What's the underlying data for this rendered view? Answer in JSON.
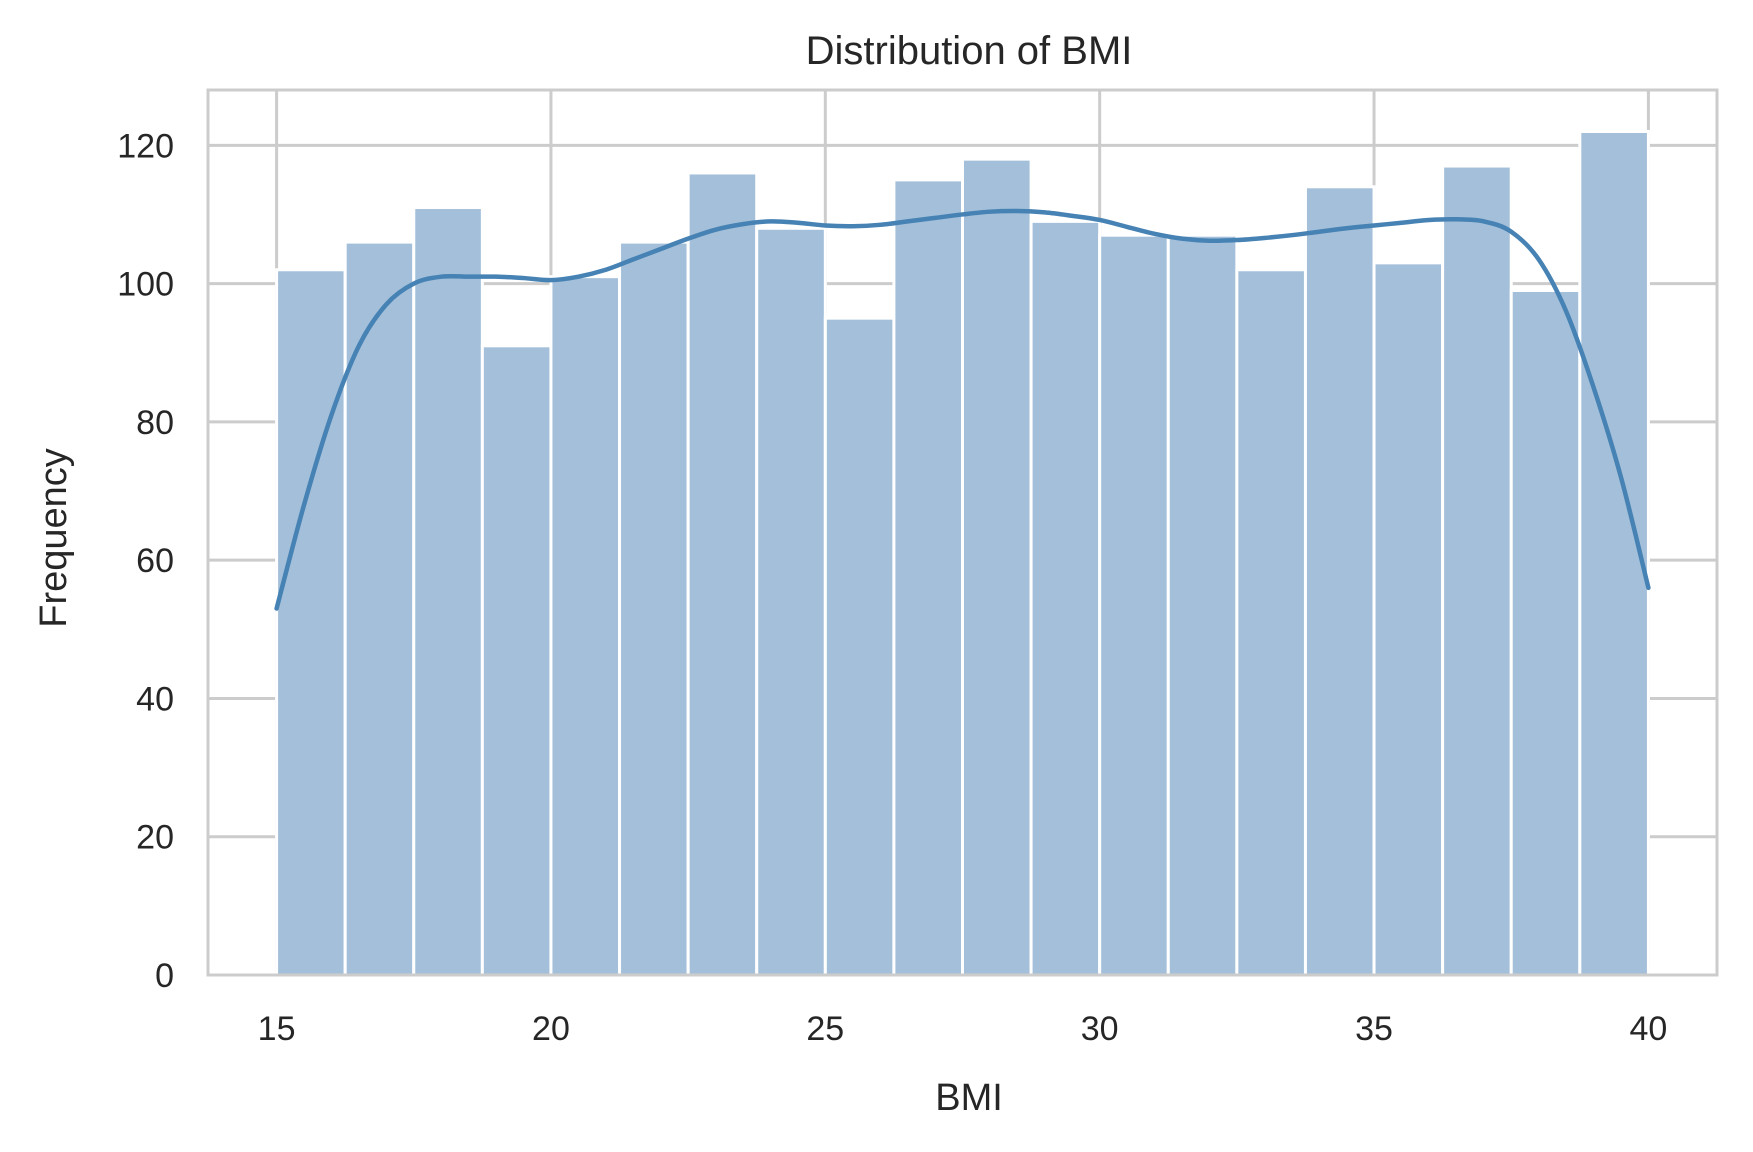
{
  "chart_data": {
    "type": "bar",
    "subtype": "histogram-with-kde",
    "title": "Distribution of BMI",
    "xlabel": "BMI",
    "ylabel": "Frequency",
    "xlim": [
      13.75,
      41.25
    ],
    "ylim": [
      0,
      128
    ],
    "x_ticks": [
      15,
      20,
      25,
      30,
      35,
      40
    ],
    "y_ticks": [
      0,
      20,
      40,
      60,
      80,
      100,
      120
    ],
    "grid": true,
    "bin_edges": [
      15,
      16.25,
      17.5,
      18.75,
      20,
      21.25,
      22.5,
      23.75,
      25,
      26.25,
      27.5,
      28.75,
      30,
      31.25,
      32.5,
      33.75,
      35,
      36.25,
      37.5,
      38.75,
      40
    ],
    "values": [
      102,
      106,
      111,
      91,
      101,
      106,
      116,
      108,
      95,
      115,
      118,
      109,
      107,
      107,
      102,
      114,
      103,
      117,
      99,
      122
    ],
    "kde": {
      "x": [
        15,
        15.5,
        16,
        16.5,
        17,
        17.5,
        18,
        18.5,
        19,
        19.5,
        20,
        20.5,
        21,
        21.5,
        22,
        22.5,
        23,
        23.5,
        24,
        24.5,
        25,
        25.5,
        26,
        26.5,
        27,
        27.5,
        28,
        28.5,
        29,
        29.5,
        30,
        30.5,
        31,
        31.5,
        32,
        32.5,
        33,
        33.5,
        34,
        34.5,
        35,
        35.5,
        36,
        36.5,
        37,
        37.5,
        38,
        38.5,
        39,
        39.5,
        40
      ],
      "y": [
        53,
        68,
        81,
        91,
        97,
        100,
        101,
        101,
        101,
        100.8,
        100.5,
        101,
        102,
        103.5,
        105,
        106.5,
        107.8,
        108.6,
        109,
        108.8,
        108.4,
        108.3,
        108.5,
        109,
        109.5,
        110,
        110.4,
        110.5,
        110.3,
        109.8,
        109.2,
        108.2,
        107.2,
        106.5,
        106.2,
        106.3,
        106.6,
        107,
        107.5,
        108,
        108.4,
        108.8,
        109.2,
        109.3,
        109,
        107.5,
        103.5,
        96,
        85,
        72,
        56
      ]
    },
    "colors": {
      "bar_fill": "#a3bfd9",
      "bar_edge": "#ffffff",
      "kde_line": "#4682b4",
      "grid": "#cccccc"
    }
  }
}
